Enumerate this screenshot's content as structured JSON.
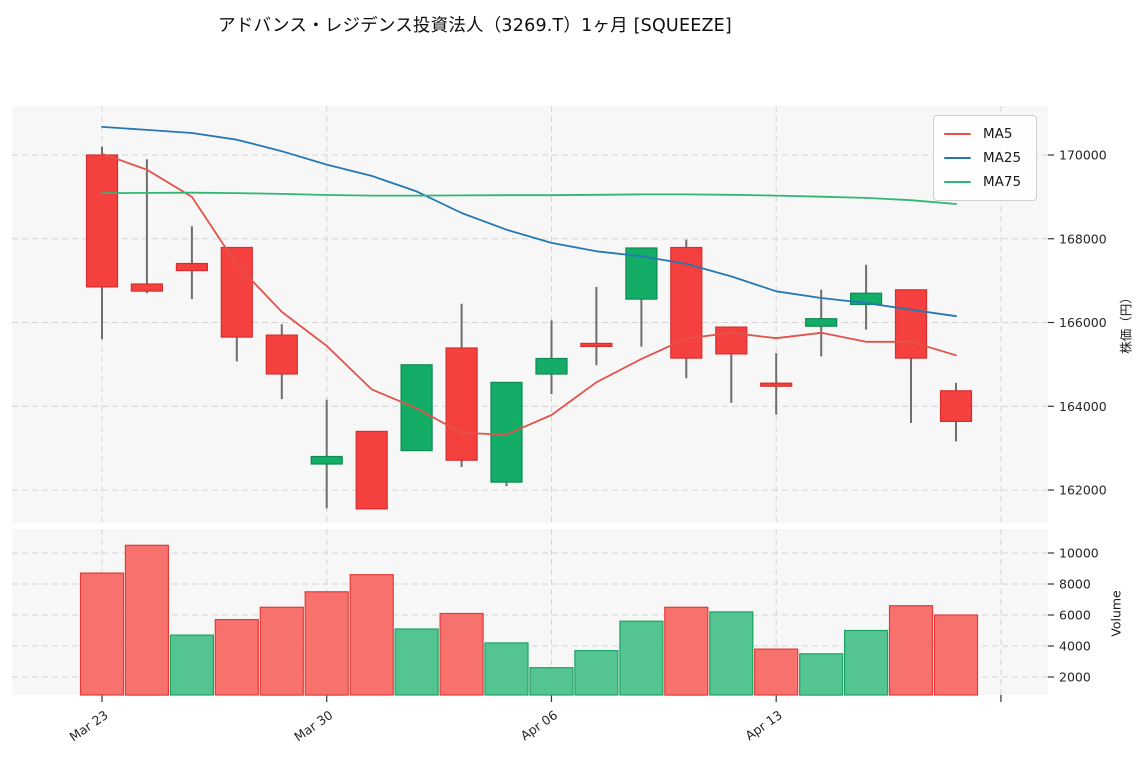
{
  "title": "アドバンス・レジデンス投資法人（3269.T）1ヶ月 [SQUEEZE]",
  "legend": {
    "items": [
      {
        "label": "MA5",
        "color": "#e3524b"
      },
      {
        "label": "MA25",
        "color": "#2478b4"
      },
      {
        "label": "MA75",
        "color": "#2eb873"
      }
    ]
  },
  "axes": {
    "price_label": "株価（円）",
    "volume_label": "Volume"
  },
  "colors": {
    "up": "#13ad68",
    "up_border": "#0e8a52",
    "down": "#f4403e",
    "down_border": "#d62f2f",
    "wick": "#6e6e6e",
    "volume_up": "#54c590",
    "volume_up_border": "#1ba364",
    "volume_down": "#f7716d",
    "volume_down_border": "#e23b38",
    "panel_bg": "#f7f7f7",
    "figure_bg": "#ffffff",
    "grid_line": "#d4d4d4",
    "tick_text": "#262626",
    "tick_mark": "#333333"
  },
  "chart_data": {
    "type": "candlestick",
    "title": "アドバンス・レジデンス投資法人（3269.T）1ヶ月 [SQUEEZE]",
    "dates": [
      "Mar 23",
      "Mar 24",
      "Mar 25",
      "Mar 26",
      "Mar 27",
      "Mar 30",
      "Mar 31",
      "Apr 01",
      "Apr 02",
      "Apr 03",
      "Apr 06",
      "Apr 07",
      "Apr 08",
      "Apr 09",
      "Apr 10",
      "Apr 13",
      "Apr 14",
      "Apr 15",
      "Apr 16",
      "Apr 17"
    ],
    "ohlc": [
      [
        170000,
        170200,
        165600,
        166850
      ],
      [
        166920,
        169900,
        166700,
        166750
      ],
      [
        167410,
        168300,
        166560,
        167240
      ],
      [
        167790,
        167790,
        165070,
        165650
      ],
      [
        165700,
        165960,
        164170,
        164770
      ],
      [
        162620,
        164160,
        161560,
        162800
      ],
      [
        163400,
        163400,
        161550,
        161550
      ],
      [
        162940,
        164990,
        162940,
        164990
      ],
      [
        165390,
        166450,
        162550,
        162710
      ],
      [
        162190,
        164570,
        162090,
        164570
      ],
      [
        164770,
        166050,
        164290,
        165140
      ],
      [
        165500,
        166850,
        164980,
        165450
      ],
      [
        166560,
        167780,
        165420,
        167780
      ],
      [
        167790,
        167980,
        164670,
        165150
      ],
      [
        165890,
        165890,
        164080,
        165250
      ],
      [
        164550,
        165270,
        163800,
        164500
      ],
      [
        165910,
        166780,
        165190,
        166090
      ],
      [
        166430,
        167380,
        165830,
        166700
      ],
      [
        166780,
        166780,
        163600,
        165150
      ],
      [
        164370,
        164560,
        163160,
        163640
      ]
    ],
    "volume": [
      8700,
      10500,
      4700,
      5700,
      6500,
      7500,
      8600,
      5100,
      6100,
      4200,
      2600,
      3700,
      5600,
      6500,
      6200,
      3800,
      3500,
      5000,
      6600,
      6000
    ],
    "volume_direction": [
      "down",
      "down",
      "up",
      "down",
      "down",
      "down",
      "down",
      "up",
      "down",
      "up",
      "up",
      "up",
      "up",
      "down",
      "up",
      "down",
      "up",
      "up",
      "down",
      "down"
    ],
    "series": [
      {
        "name": "MA5",
        "color": "#e3524b",
        "values": [
          170030,
          169650,
          169000,
          167380,
          166252,
          165442,
          164402,
          163952,
          163364,
          163324,
          163792,
          164572,
          165130,
          165618,
          165754,
          165626,
          165754,
          165538,
          165538,
          165216
        ]
      },
      {
        "name": "MA25",
        "color": "#2478b4",
        "values": [
          170670,
          170600,
          170525,
          170365,
          170090,
          169770,
          169500,
          169130,
          168615,
          168215,
          167900,
          167700,
          167580,
          167400,
          167100,
          166745,
          166585,
          166465,
          166305,
          166150
        ]
      },
      {
        "name": "MA75",
        "color": "#2eb873",
        "values": [
          169090,
          169095,
          169100,
          169090,
          169070,
          169045,
          169030,
          169030,
          169035,
          169040,
          169040,
          169050,
          169060,
          169060,
          169050,
          169030,
          169005,
          168975,
          168920,
          168830
        ]
      }
    ],
    "price_axis": {
      "label": "株価（円）",
      "ticks": [
        162000,
        164000,
        166000,
        168000,
        170000
      ],
      "ylim": [
        161210,
        171170
      ]
    },
    "volume_axis": {
      "label": "Volume",
      "ticks": [
        2000,
        4000,
        6000,
        8000,
        10000
      ],
      "ylim": [
        900,
        11400
      ]
    },
    "x_axis": {
      "tick_positions": [
        0,
        5,
        10,
        15,
        20
      ],
      "tick_labels": [
        "Mar 23",
        "Mar 30",
        "Apr 06",
        "Apr 13",
        ""
      ]
    },
    "legend_position": "upper right",
    "grid": true
  }
}
